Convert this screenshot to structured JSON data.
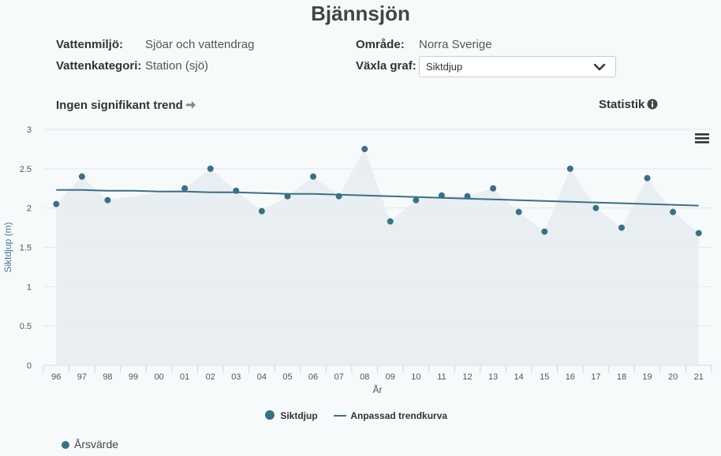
{
  "title": "Bjännsjön",
  "info": {
    "vattenmiljo_label": "Vattenmiljö:",
    "vattenmiljo_value": "Sjöar och vattendrag",
    "omrade_label": "Område:",
    "omrade_value": "Norra Sverige",
    "vattenkategori_label": "Vattenkategori:",
    "vattenkategori_value": "Station (sjö)",
    "vaxla_label": "Växla graf:",
    "vaxla_value": "Siktdjup"
  },
  "trend_text": "Ingen signifikant trend",
  "statistik_label": "Statistik",
  "icons": {
    "trend": "arrow-right-icon",
    "statistik": "info-circle-icon",
    "menu": "hamburger-menu-icon",
    "select": "chevron-down-icon"
  },
  "colors": {
    "series": "#3d6f84",
    "area": "#e6ecef",
    "grid": "#e3e7ea",
    "axis_text": "#555555"
  },
  "chart_data": {
    "type": "line",
    "title": "",
    "xlabel": "År",
    "ylabel": "Siktdjup (m)",
    "ylim": [
      0,
      3
    ],
    "yticks": [
      "0",
      "0.5",
      "1",
      "1.5",
      "2",
      "2.5",
      "3"
    ],
    "categories": [
      "96",
      "97",
      "98",
      "99",
      "00",
      "01",
      "02",
      "03",
      "04",
      "05",
      "06",
      "07",
      "08",
      "09",
      "10",
      "11",
      "12",
      "13",
      "14",
      "15",
      "16",
      "17",
      "18",
      "19",
      "20",
      "21"
    ],
    "series": [
      {
        "name": "Siktdjup",
        "type": "scatter+area",
        "values": [
          2.05,
          2.4,
          2.1,
          null,
          null,
          2.25,
          2.5,
          2.22,
          1.96,
          2.15,
          2.4,
          2.15,
          2.75,
          1.83,
          2.1,
          2.16,
          2.15,
          2.25,
          1.95,
          1.7,
          2.5,
          2.0,
          1.75,
          2.38,
          1.95,
          1.68
        ]
      },
      {
        "name": "Anpassad trendkurva",
        "type": "line",
        "values": [
          2.23,
          2.23,
          2.22,
          2.22,
          2.21,
          2.21,
          2.2,
          2.2,
          2.19,
          2.18,
          2.18,
          2.17,
          2.16,
          2.15,
          2.14,
          2.13,
          2.12,
          2.11,
          2.1,
          2.09,
          2.08,
          2.07,
          2.06,
          2.05,
          2.04,
          2.03
        ]
      }
    ],
    "grid": true,
    "legend_position": "bottom-center"
  },
  "legend": {
    "series1": "Siktdjup",
    "series2": "Anpassad trendkurva"
  },
  "arsvarde_label": "Årsvärde"
}
